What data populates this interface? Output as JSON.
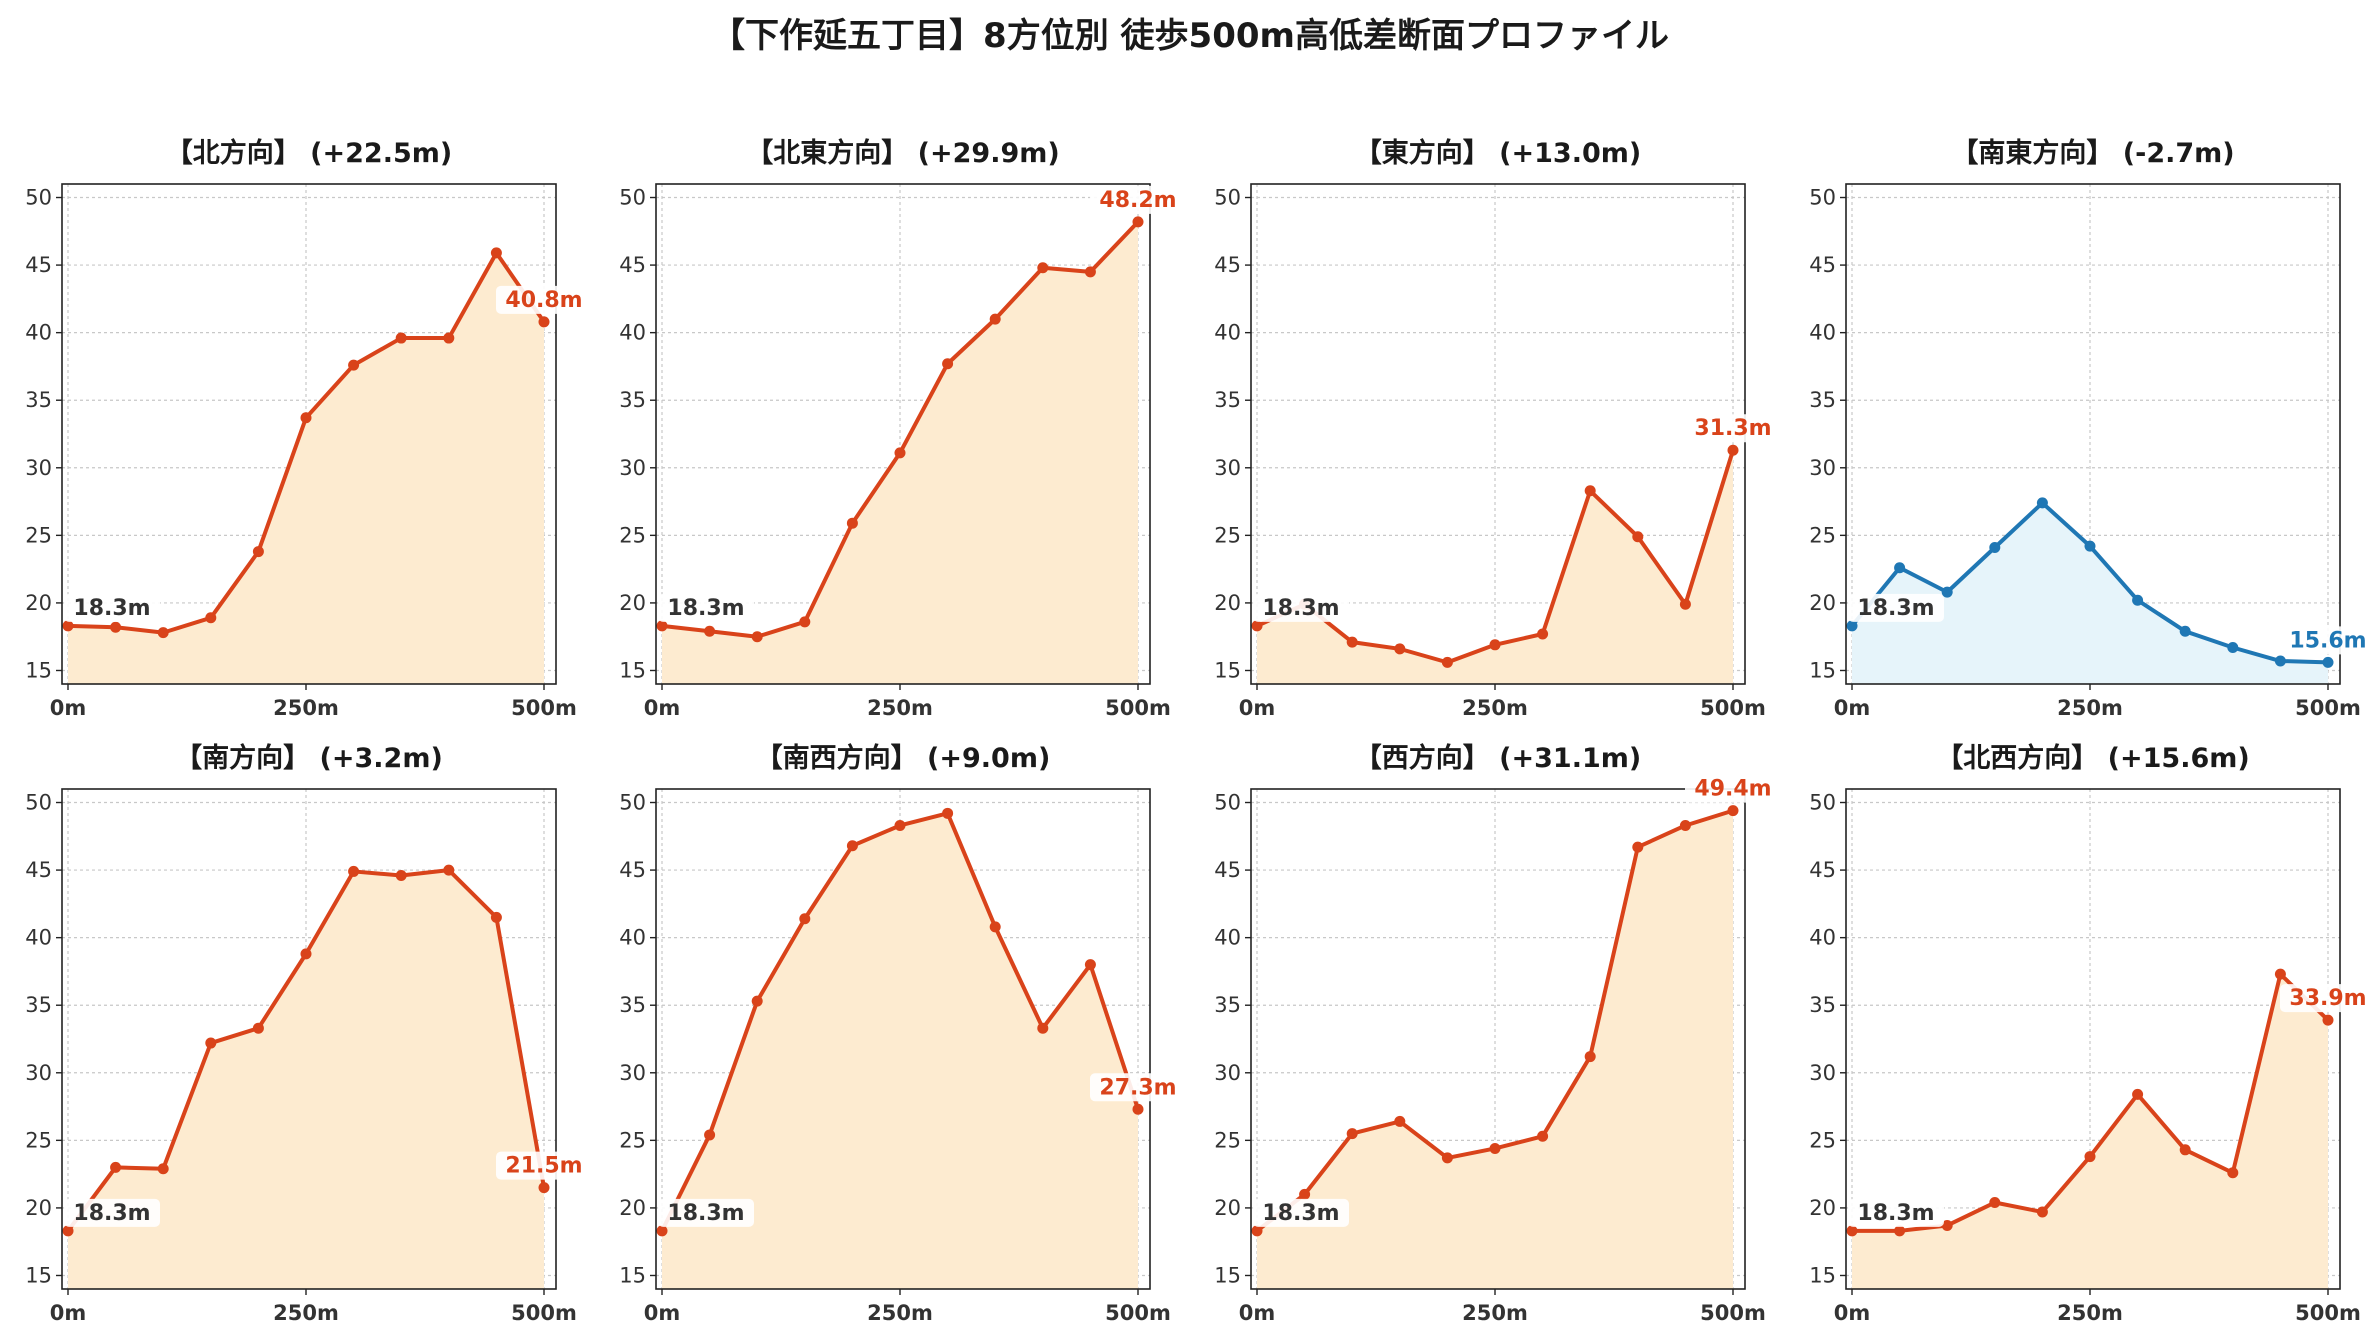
{
  "title": "【下作延五丁目】8方位別 徒歩500m高低差断面プロファイル",
  "colors": {
    "up": "#d9431a",
    "down": "#1f77b4",
    "fill_up": "#fdebd0",
    "fill_down": "#e6f4fa",
    "grid": "#c8c8c8"
  },
  "chart_data": [
    {
      "type": "area",
      "title": "【北方向】 (+22.5m)",
      "x": [
        0,
        50,
        100,
        150,
        200,
        250,
        300,
        350,
        400,
        450,
        500
      ],
      "y": [
        18.3,
        18.2,
        17.8,
        18.9,
        23.8,
        33.7,
        37.6,
        39.6,
        39.6,
        45.9,
        40.8
      ],
      "start_label": "18.3m",
      "end_label": "40.8m",
      "trend": "up",
      "xticks": [
        "0m",
        "250m",
        "500m"
      ],
      "yticks": [
        15,
        20,
        25,
        30,
        35,
        40,
        45,
        50
      ],
      "xlim": [
        0,
        500
      ],
      "ylim": [
        14,
        51
      ],
      "grid": true
    },
    {
      "type": "area",
      "title": "【北東方向】 (+29.9m)",
      "x": [
        0,
        50,
        100,
        150,
        200,
        250,
        300,
        350,
        400,
        450,
        500
      ],
      "y": [
        18.3,
        17.9,
        17.5,
        18.6,
        25.9,
        31.1,
        37.7,
        41.0,
        44.8,
        44.5,
        48.2
      ],
      "start_label": "18.3m",
      "end_label": "48.2m",
      "trend": "up",
      "xticks": [
        "0m",
        "250m",
        "500m"
      ],
      "yticks": [
        15,
        20,
        25,
        30,
        35,
        40,
        45,
        50
      ],
      "xlim": [
        0,
        500
      ],
      "ylim": [
        14,
        51
      ],
      "grid": true
    },
    {
      "type": "area",
      "title": "【東方向】 (+13.0m)",
      "x": [
        0,
        50,
        100,
        150,
        200,
        250,
        300,
        350,
        400,
        450,
        500
      ],
      "y": [
        18.3,
        19.9,
        17.1,
        16.6,
        15.6,
        16.9,
        17.7,
        28.3,
        24.9,
        19.9,
        31.3
      ],
      "start_label": "18.3m",
      "end_label": "31.3m",
      "trend": "up",
      "xticks": [
        "0m",
        "250m",
        "500m"
      ],
      "yticks": [
        15,
        20,
        25,
        30,
        35,
        40,
        45,
        50
      ],
      "xlim": [
        0,
        500
      ],
      "ylim": [
        14,
        51
      ],
      "grid": true
    },
    {
      "type": "area",
      "title": "【南東方向】 (-2.7m)",
      "x": [
        0,
        50,
        100,
        150,
        200,
        250,
        300,
        350,
        400,
        450,
        500
      ],
      "y": [
        18.3,
        22.6,
        20.8,
        24.1,
        27.4,
        24.2,
        20.2,
        17.9,
        16.7,
        15.7,
        15.6
      ],
      "start_label": "18.3m",
      "end_label": "15.6m",
      "trend": "down",
      "xticks": [
        "0m",
        "250m",
        "500m"
      ],
      "yticks": [
        15,
        20,
        25,
        30,
        35,
        40,
        45,
        50
      ],
      "xlim": [
        0,
        500
      ],
      "ylim": [
        14,
        51
      ],
      "grid": true
    },
    {
      "type": "area",
      "title": "【南方向】 (+3.2m)",
      "x": [
        0,
        50,
        100,
        150,
        200,
        250,
        300,
        350,
        400,
        450,
        500
      ],
      "y": [
        18.3,
        23.0,
        22.9,
        32.2,
        33.3,
        38.8,
        44.9,
        44.6,
        45.0,
        41.5,
        21.5
      ],
      "start_label": "18.3m",
      "end_label": "21.5m",
      "trend": "up",
      "xticks": [
        "0m",
        "250m",
        "500m"
      ],
      "yticks": [
        15,
        20,
        25,
        30,
        35,
        40,
        45,
        50
      ],
      "xlim": [
        0,
        500
      ],
      "ylim": [
        14,
        51
      ],
      "grid": true
    },
    {
      "type": "area",
      "title": "【南西方向】 (+9.0m)",
      "x": [
        0,
        50,
        100,
        150,
        200,
        250,
        300,
        350,
        400,
        450,
        500
      ],
      "y": [
        18.3,
        25.4,
        35.3,
        41.4,
        46.8,
        48.3,
        49.2,
        40.8,
        33.3,
        38.0,
        27.3
      ],
      "start_label": "18.3m",
      "end_label": "27.3m",
      "trend": "up",
      "xticks": [
        "0m",
        "250m",
        "500m"
      ],
      "yticks": [
        15,
        20,
        25,
        30,
        35,
        40,
        45,
        50
      ],
      "xlim": [
        0,
        500
      ],
      "ylim": [
        14,
        51
      ],
      "grid": true
    },
    {
      "type": "area",
      "title": "【西方向】 (+31.1m)",
      "x": [
        0,
        50,
        100,
        150,
        200,
        250,
        300,
        350,
        400,
        450,
        500
      ],
      "y": [
        18.3,
        21.0,
        25.5,
        26.4,
        23.7,
        24.4,
        25.3,
        31.2,
        46.7,
        48.3,
        49.4
      ],
      "start_label": "18.3m",
      "end_label": "49.4m",
      "trend": "up",
      "xticks": [
        "0m",
        "250m",
        "500m"
      ],
      "yticks": [
        15,
        20,
        25,
        30,
        35,
        40,
        45,
        50
      ],
      "xlim": [
        0,
        500
      ],
      "ylim": [
        14,
        51
      ],
      "grid": true
    },
    {
      "type": "area",
      "title": "【北西方向】 (+15.6m)",
      "x": [
        0,
        50,
        100,
        150,
        200,
        250,
        300,
        350,
        400,
        450,
        500
      ],
      "y": [
        18.3,
        18.3,
        18.7,
        20.4,
        19.7,
        23.8,
        28.4,
        24.3,
        22.6,
        37.3,
        33.9
      ],
      "start_label": "18.3m",
      "end_label": "33.9m",
      "trend": "up",
      "xticks": [
        "0m",
        "250m",
        "500m"
      ],
      "yticks": [
        15,
        20,
        25,
        30,
        35,
        40,
        45,
        50
      ],
      "xlim": [
        0,
        500
      ],
      "ylim": [
        14,
        51
      ],
      "grid": true
    }
  ]
}
